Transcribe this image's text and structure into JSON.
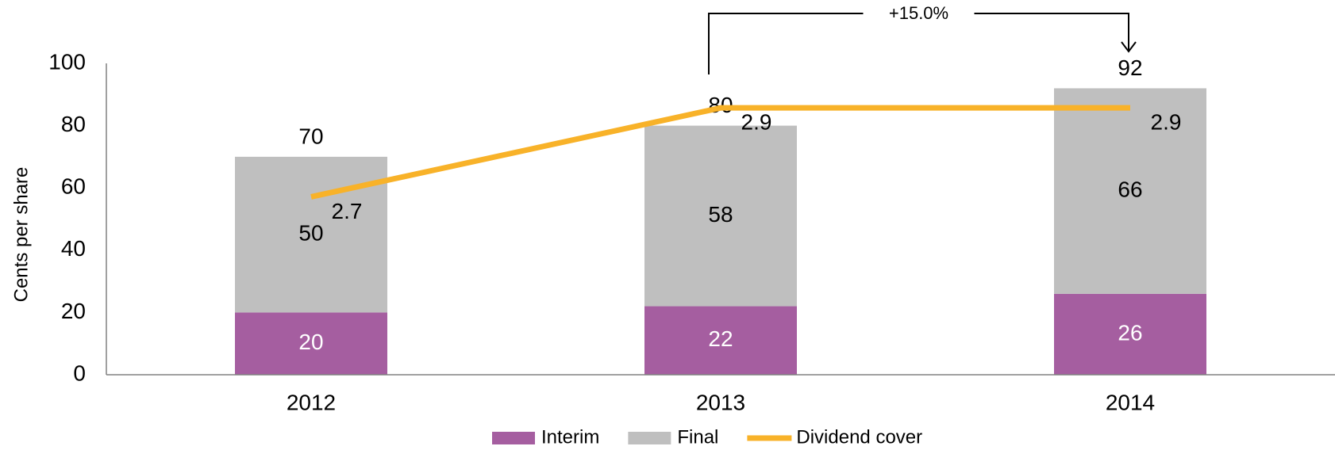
{
  "chart_data": {
    "type": "bar",
    "stacked": true,
    "y_label": "Cents per share",
    "categories": [
      "2012",
      "2013",
      "2014"
    ],
    "series": [
      {
        "name": "Interim",
        "color": "#a55ea0",
        "values": [
          20,
          22,
          26
        ]
      },
      {
        "name": "Final",
        "color": "#bfbfbf",
        "values": [
          50,
          58,
          66
        ]
      },
      {
        "name": "Dividend cover",
        "type": "line",
        "axis": "y2",
        "color": "#f8b229",
        "values": [
          2.7,
          2.9,
          2.9
        ]
      }
    ],
    "totals": [
      70,
      80,
      92
    ],
    "ylim": [
      0,
      100
    ],
    "yticks": [
      0,
      20,
      40,
      60,
      80,
      100
    ],
    "y2lim": [
      2.3,
      3.0
    ],
    "annotation": "+15.0%",
    "legend": "bottom"
  }
}
